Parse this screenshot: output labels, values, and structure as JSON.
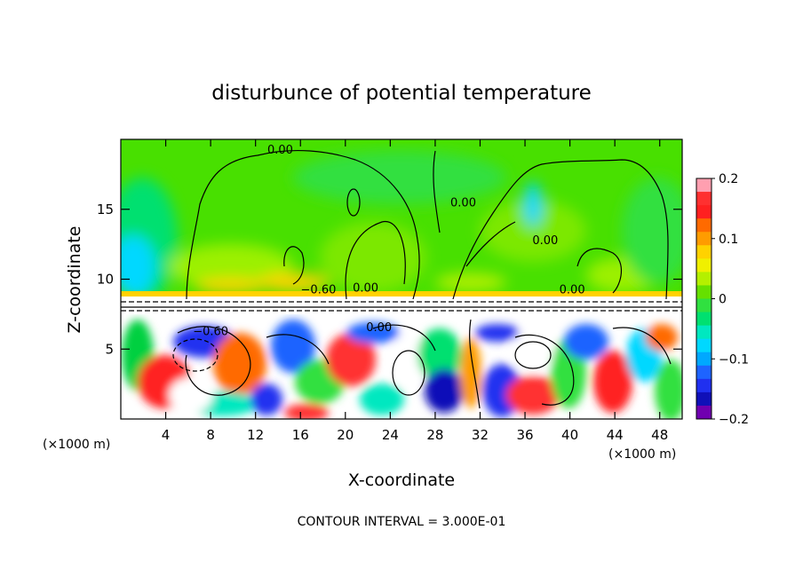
{
  "chart_data": {
    "type": "heatmap",
    "title": "disturbunce of potential temperature",
    "xlabel": "X-coordinate",
    "ylabel": "Z-coordinate",
    "x_unit_left": "(×1000 m)",
    "x_unit_right": "(×1000 m)",
    "footer": "CONTOUR INTERVAL = 3.000E-01",
    "xlim": [
      0,
      50
    ],
    "ylim": [
      0,
      20
    ],
    "x_ticks": [
      4,
      8,
      12,
      16,
      20,
      24,
      28,
      32,
      36,
      40,
      44,
      48
    ],
    "y_ticks": [
      5,
      10,
      15
    ],
    "colorbar": {
      "range": [
        -0.2,
        0.2
      ],
      "ticks": [
        0.2,
        0.1,
        0,
        -0.1,
        -0.2
      ],
      "tick_labels": [
        "0.2",
        "0.1",
        "0",
        "−0.1",
        "−0.2"
      ],
      "colors": [
        "#ff9fb0",
        "#ff3030",
        "#ff2020",
        "#ff6a00",
        "#ff9c00",
        "#ffd200",
        "#f0f000",
        "#b4f000",
        "#66e000",
        "#30e040",
        "#00e070",
        "#00e8c0",
        "#00d8ff",
        "#00a8ff",
        "#1e64ff",
        "#2030f0",
        "#1010b8",
        "#7000b0"
      ]
    },
    "contour_labels": [
      {
        "text": "0.00",
        "x": 14.2,
        "z": 19.0
      },
      {
        "text": "0.00",
        "x": 30.5,
        "z": 15.2
      },
      {
        "text": "0.00",
        "x": 37.8,
        "z": 12.5
      },
      {
        "text": "0.00",
        "x": 21.8,
        "z": 9.1
      },
      {
        "text": "−0.60",
        "x": 17.6,
        "z": 9.0
      },
      {
        "text": "0.00",
        "x": 40.2,
        "z": 9.0
      },
      {
        "text": "−0.60",
        "x": 8.0,
        "z": 6.0
      },
      {
        "text": "0.00",
        "x": 23.0,
        "z": 6.3
      }
    ]
  }
}
